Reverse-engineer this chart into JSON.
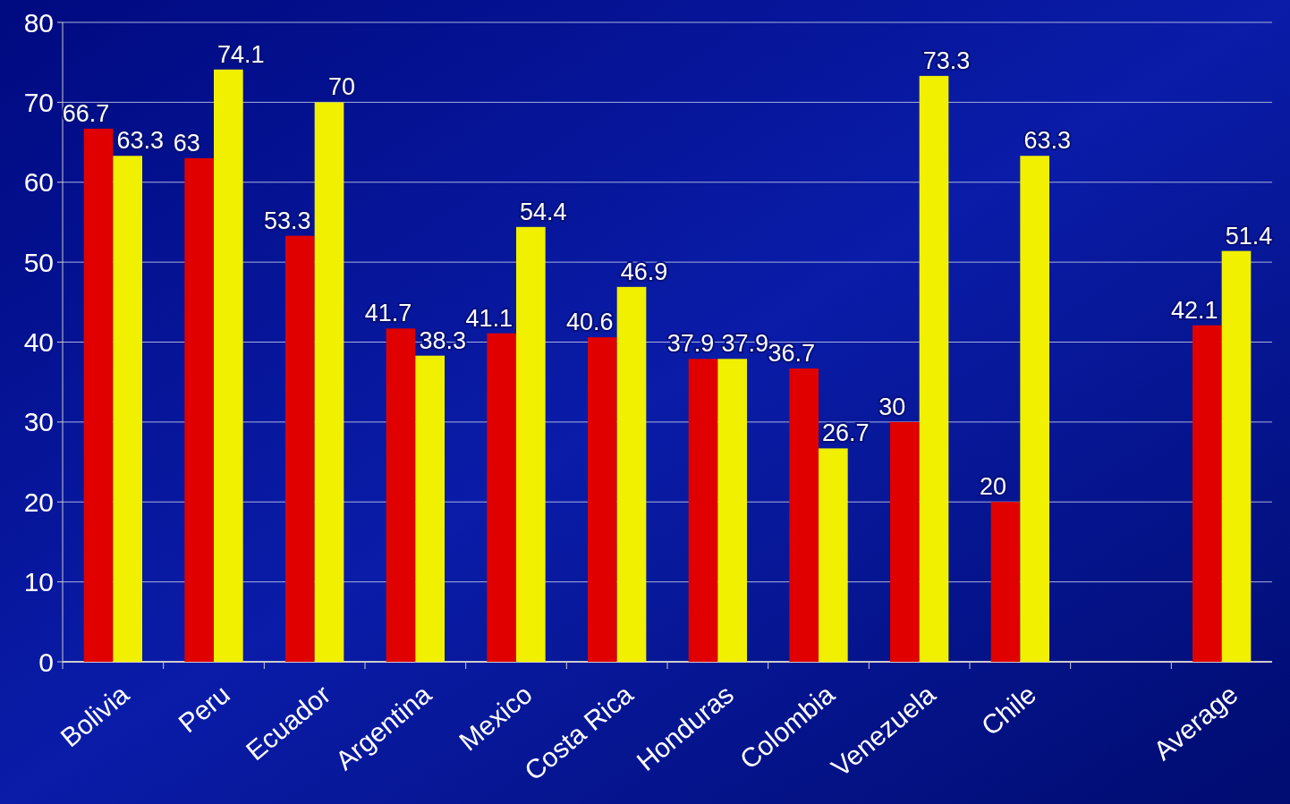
{
  "chart_data": {
    "type": "bar",
    "categories": [
      "Bolivia",
      "Peru",
      "Ecuador",
      "Argentina",
      "Mexico",
      "Costa Rica",
      "Honduras",
      "Colombia",
      "Venezuela",
      "Chile",
      null,
      "Average"
    ],
    "series": [
      {
        "color": "#e00000",
        "values": [
          66.7,
          63,
          53.3,
          41.7,
          41.1,
          40.6,
          37.9,
          36.7,
          30,
          20,
          null,
          42.1
        ]
      },
      {
        "color": "#f0f000",
        "values": [
          63.3,
          74.1,
          70,
          38.3,
          54.4,
          46.9,
          37.9,
          26.7,
          73.3,
          63.3,
          null,
          51.4
        ]
      }
    ],
    "ylim": [
      0,
      80
    ],
    "yticks": [
      0,
      10,
      20,
      30,
      40,
      50,
      60,
      70,
      80
    ],
    "grid": "y",
    "data_labels": true
  }
}
